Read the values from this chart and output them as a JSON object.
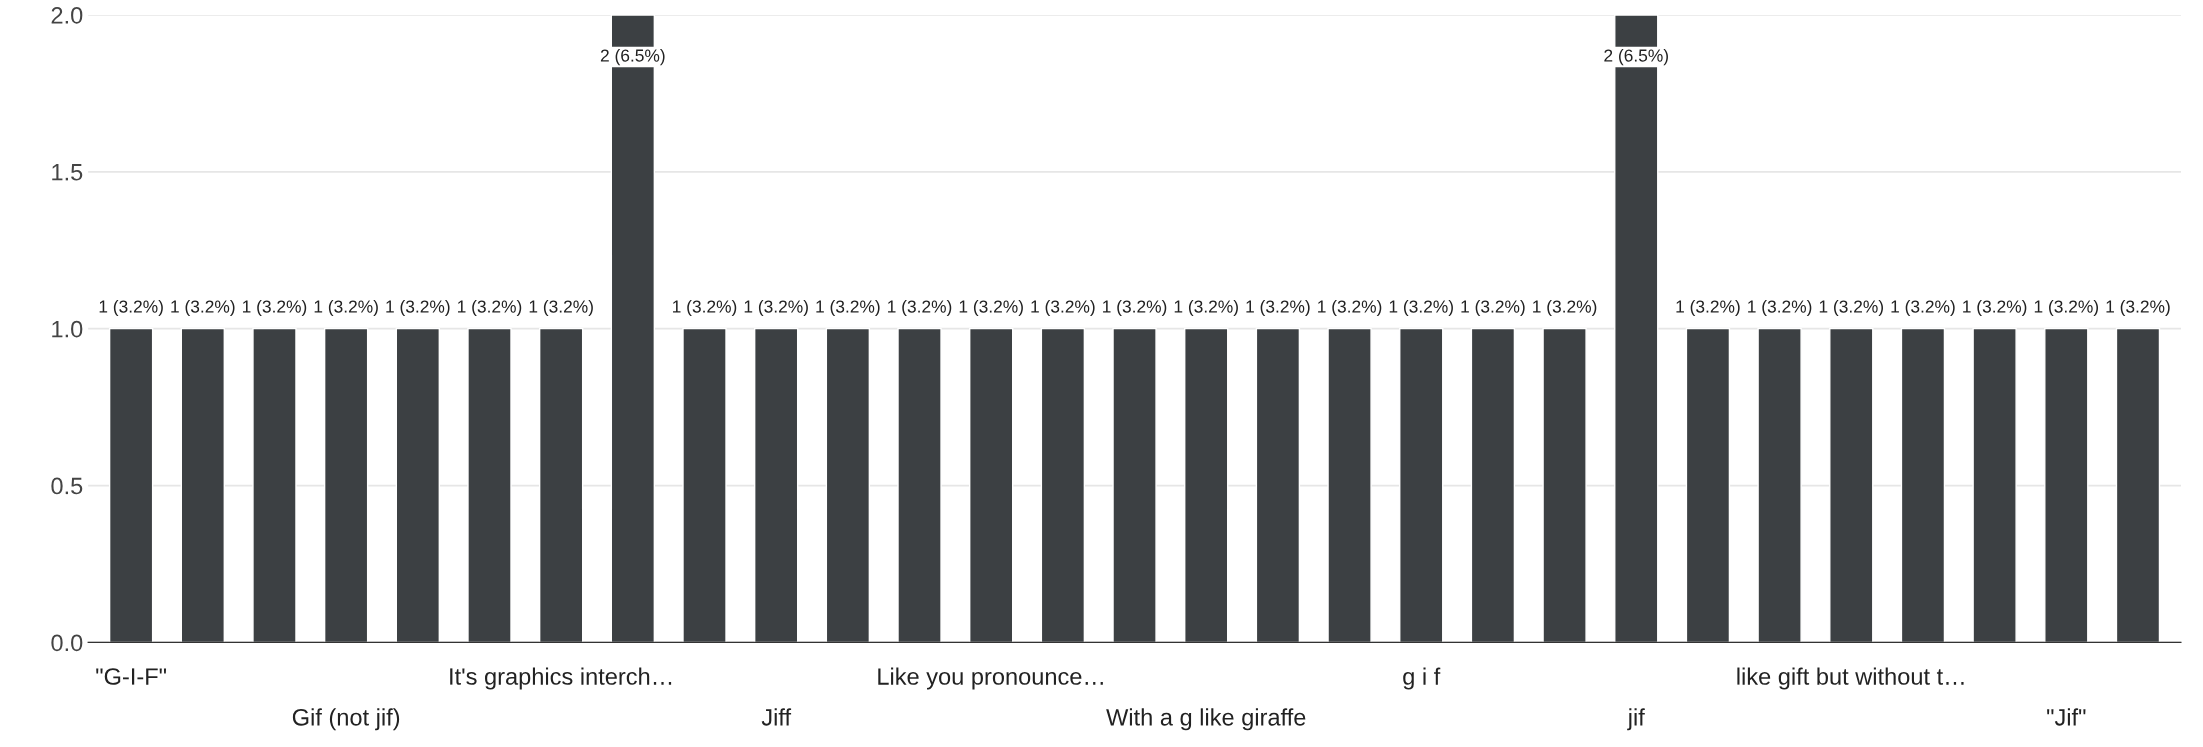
{
  "chart_data": {
    "type": "bar",
    "categories": [
      "\"G-I-F\"",
      null,
      null,
      "Gif (not jif)",
      null,
      null,
      "It's graphics interch…",
      null,
      null,
      "Jiff",
      null,
      null,
      "Like you pronounce…",
      null,
      null,
      "With a g like giraffe",
      null,
      null,
      "g i f",
      null,
      null,
      "jif",
      null,
      null,
      "like gift but without t…",
      null,
      null,
      "\"Jif\"",
      null
    ],
    "values": [
      1,
      1,
      1,
      1,
      1,
      1,
      1,
      2,
      1,
      1,
      1,
      1,
      1,
      1,
      1,
      1,
      1,
      1,
      1,
      1,
      1,
      2,
      1,
      1,
      1,
      1,
      1,
      1,
      1
    ],
    "value_labels": [
      "1 (3.2%)",
      "1 (3.2%)",
      "1 (3.2%)",
      "1 (3.2%)",
      "1 (3.2%)",
      "1 (3.2%)",
      "1 (3.2%)",
      "2 (6.5%)",
      "1 (3.2%)",
      "1 (3.2%)",
      "1 (3.2%)",
      "1 (3.2%)",
      "1 (3.2%)",
      "1 (3.2%)",
      "1 (3.2%)",
      "1 (3.2%)",
      "1 (3.2%)",
      "1 (3.2%)",
      "1 (3.2%)",
      "1 (3.2%)",
      "1 (3.2%)",
      "2 (6.5%)",
      "1 (3.2%)",
      "1 (3.2%)",
      "1 (3.2%)",
      "1 (3.2%)",
      "1 (3.2%)",
      "1 (3.2%)",
      "1 (3.2%)"
    ],
    "color": "#3c4043",
    "ylim": [
      0,
      2.0
    ],
    "yticks": [
      {
        "value": 0,
        "label": "0.0"
      },
      {
        "value": 0.5,
        "label": "0.5"
      },
      {
        "value": 1,
        "label": "1.0"
      },
      {
        "value": 1.5,
        "label": "1.5"
      },
      {
        "value": 2,
        "label": "2.0"
      }
    ],
    "grid": "y"
  }
}
